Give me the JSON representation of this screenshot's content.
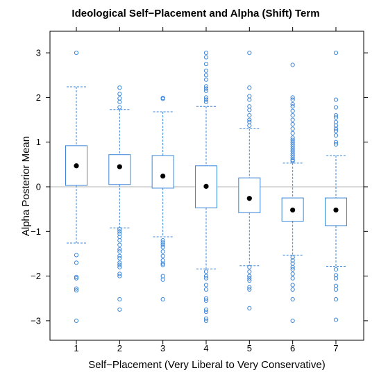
{
  "chart_data": {
    "type": "boxplot",
    "title": "Ideological Self−Placement and Alpha (Shift) Term",
    "xlabel": "Self−Placement (Very Liberal to Very Conservative)",
    "ylabel": "Alpha Posterior Mean",
    "categories": [
      "1",
      "2",
      "3",
      "4",
      "5",
      "6",
      "7"
    ],
    "yticks": [
      "−3",
      "−2",
      "−1",
      "0",
      "1",
      "2",
      "3"
    ],
    "yticks_values": [
      -3,
      -2,
      -1,
      0,
      1,
      2,
      3
    ],
    "ylim": [
      -3.35,
      3.15
    ],
    "reference_line": 0,
    "grid": false,
    "colors": {
      "box": "#3b86d8",
      "mean": "#000000",
      "reference": "#cccccc"
    },
    "boxes": [
      {
        "category": "1",
        "whisker_low": -1.26,
        "q1": 0.03,
        "q3": 0.92,
        "whisker_high": 2.24,
        "mean": 0.47,
        "outliers": [
          3.0,
          -1.53,
          -1.7,
          -2.02,
          -2.05,
          -2.28,
          -2.32,
          -3.0
        ]
      },
      {
        "category": "2",
        "whisker_low": -0.92,
        "q1": 0.05,
        "q3": 0.72,
        "whisker_high": 1.73,
        "mean": 0.45,
        "outliers": [
          2.22,
          2.08,
          1.98,
          1.9,
          1.78,
          -0.95,
          -1.0,
          -1.05,
          -1.12,
          -1.2,
          -1.3,
          -1.4,
          -1.45,
          -1.55,
          -1.6,
          -1.7,
          -1.75,
          -1.8,
          -1.95,
          -2.0,
          -2.52,
          -2.75
        ]
      },
      {
        "category": "3",
        "whisker_low": -1.12,
        "q1": -0.03,
        "q3": 0.7,
        "whisker_high": 1.68,
        "mean": 0.24,
        "outliers": [
          1.99,
          1.97,
          -1.2,
          -1.25,
          -1.3,
          -1.35,
          -1.45,
          -1.55,
          -1.65,
          -1.72,
          -1.75,
          -2.0,
          -2.08,
          -2.52
        ]
      },
      {
        "category": "4",
        "whisker_low": -1.84,
        "q1": -0.47,
        "q3": 0.47,
        "whisker_high": 1.8,
        "mean": 0.01,
        "outliers": [
          3.0,
          2.9,
          2.75,
          2.6,
          2.5,
          2.4,
          2.25,
          2.2,
          2.15,
          2.0,
          1.95,
          1.9,
          -1.9,
          -2.0,
          -2.05,
          -2.2,
          -2.3,
          -2.5,
          -2.55,
          -2.75,
          -2.8,
          -2.95,
          -3.0
        ]
      },
      {
        "category": "5",
        "whisker_low": -1.77,
        "q1": -0.58,
        "q3": 0.2,
        "whisker_high": 1.3,
        "mean": -0.26,
        "outliers": [
          3.0,
          2.22,
          2.03,
          1.95,
          1.8,
          1.72,
          1.6,
          1.5,
          1.45,
          1.37,
          -1.8,
          -1.9,
          -2.0,
          -2.05,
          -2.1,
          -2.25,
          -2.3,
          -2.72
        ]
      },
      {
        "category": "6",
        "whisker_low": -1.53,
        "q1": -0.77,
        "q3": -0.25,
        "whisker_high": 0.53,
        "mean": -0.52,
        "outliers": [
          2.73,
          2.0,
          1.95,
          1.85,
          1.8,
          1.7,
          1.6,
          1.5,
          1.4,
          1.3,
          1.2,
          1.1,
          1.05,
          1.0,
          0.95,
          0.9,
          0.85,
          0.8,
          0.75,
          0.7,
          0.65,
          0.6,
          0.58,
          -1.58,
          -1.65,
          -1.72,
          -1.8,
          -1.85,
          -1.95,
          -2.05,
          -2.2,
          -2.3,
          -2.52,
          -3.0
        ]
      },
      {
        "category": "7",
        "whisker_low": -1.78,
        "q1": -0.87,
        "q3": -0.25,
        "whisker_high": 0.7,
        "mean": -0.52,
        "outliers": [
          3.0,
          1.95,
          1.78,
          1.6,
          1.55,
          1.45,
          1.37,
          1.3,
          1.25,
          1.15,
          1.0,
          0.95,
          -1.85,
          -1.98,
          -2.05,
          -2.22,
          -2.3,
          -2.52,
          -2.98
        ]
      }
    ]
  }
}
